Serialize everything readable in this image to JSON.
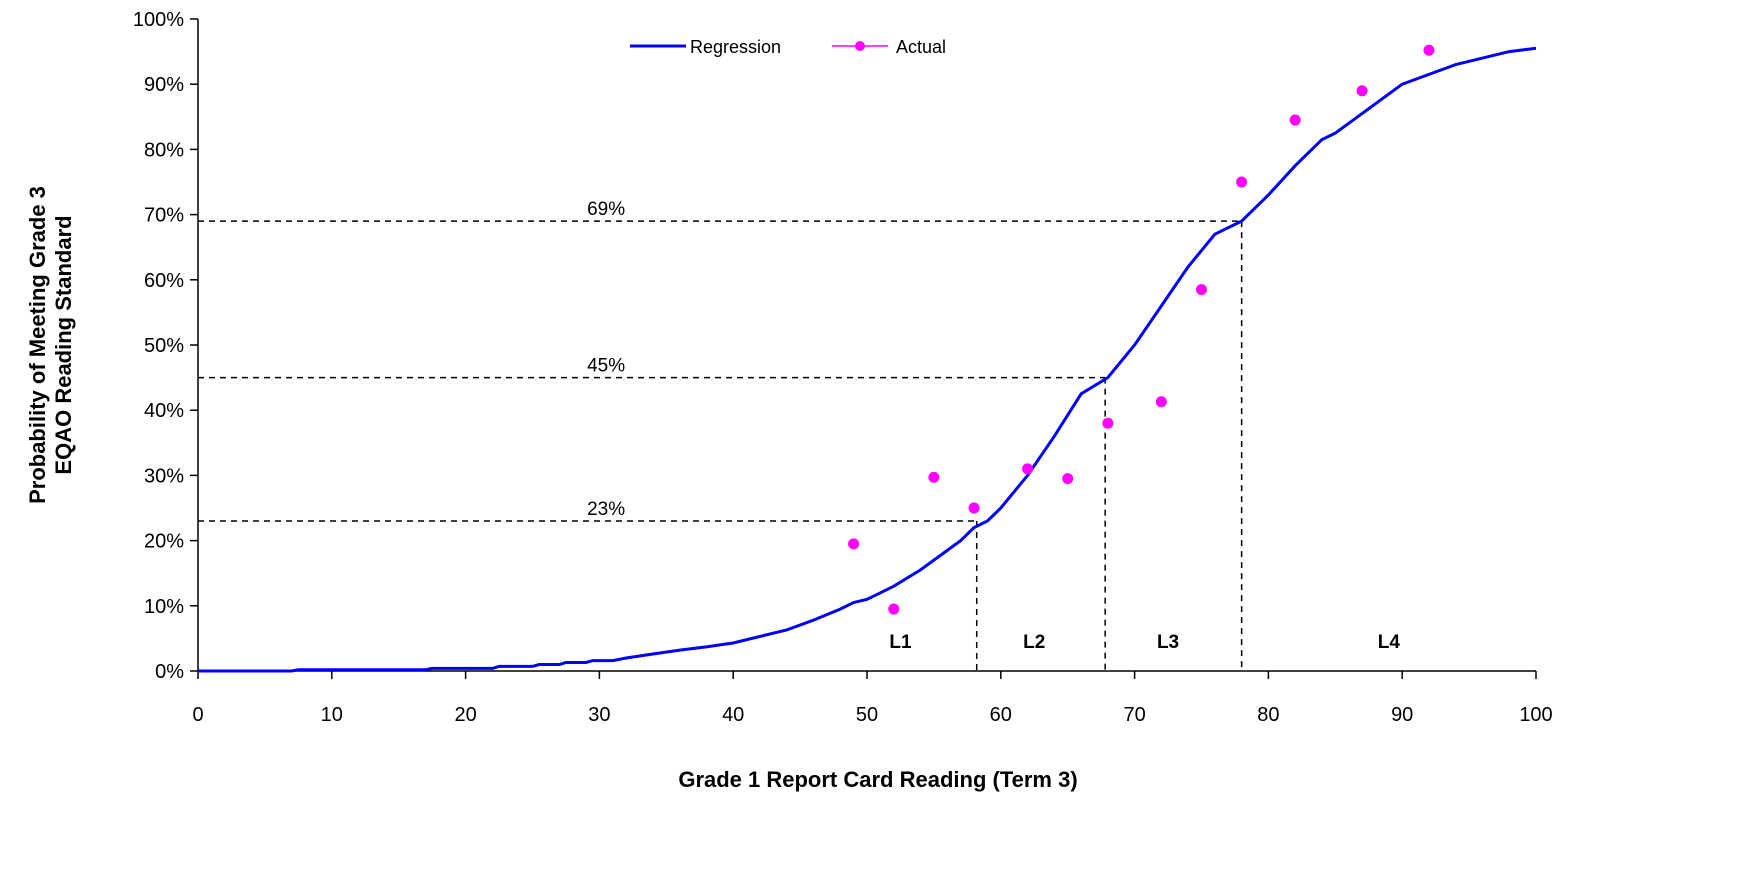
{
  "chart_data": {
    "type": "line",
    "title": "",
    "xlabel": "Grade 1 Report Card Reading (Term 3)",
    "ylabel_lines": [
      "Probability of Meeting Grade 3",
      "EQAO Reading Standard"
    ],
    "xlim": [
      0,
      100
    ],
    "ylim": [
      0,
      100
    ],
    "x_ticks": [
      0,
      10,
      20,
      30,
      40,
      50,
      60,
      70,
      80,
      90,
      100
    ],
    "y_ticks": [
      0,
      10,
      20,
      30,
      40,
      50,
      60,
      70,
      80,
      90,
      100
    ],
    "y_tick_labels": [
      "0%",
      "10%",
      "20%",
      "30%",
      "40%",
      "50%",
      "60%",
      "70%",
      "80%",
      "90%",
      "100%"
    ],
    "grid": false,
    "legend_position": "top-center",
    "series": [
      {
        "name": "Regression",
        "style": "line",
        "color": "#0000ff",
        "x": [
          0,
          7,
          7.5,
          17,
          17.5,
          22,
          22.5,
          25,
          25.5,
          27,
          27.5,
          29,
          29.5,
          31,
          32,
          34,
          36,
          38,
          39,
          40,
          42,
          44,
          46,
          48,
          49,
          50,
          51,
          52,
          54,
          56,
          57,
          58,
          59,
          60,
          62,
          64,
          66,
          68,
          70,
          72,
          74,
          76,
          78,
          79,
          80,
          82,
          84,
          85,
          86,
          88,
          90,
          92,
          94,
          96,
          98,
          100
        ],
        "y": [
          0,
          0,
          0.2,
          0.2,
          0.4,
          0.4,
          0.7,
          0.7,
          1.0,
          1.0,
          1.3,
          1.3,
          1.6,
          1.6,
          2.0,
          2.6,
          3.2,
          3.7,
          4.0,
          4.3,
          5.3,
          6.3,
          7.8,
          9.5,
          10.5,
          11.0,
          12.0,
          13.0,
          15.5,
          18.5,
          20.0,
          22.0,
          23.0,
          25.0,
          30.0,
          36.0,
          42.5,
          45.0,
          50.0,
          56.0,
          62.0,
          67.0,
          69.0,
          71.0,
          73.0,
          77.5,
          81.5,
          82.5,
          84.0,
          87.0,
          90.0,
          91.5,
          93.0,
          94.0,
          95.0,
          95.5
        ]
      },
      {
        "name": "Actual",
        "style": "markers",
        "color": "#ff00ff",
        "x": [
          49,
          52,
          55,
          58,
          62,
          65,
          68,
          72,
          75,
          78,
          82,
          87,
          92
        ],
        "y": [
          19.5,
          9.5,
          29.7,
          25.0,
          31.0,
          29.5,
          38.0,
          41.3,
          58.5,
          75.0,
          84.5,
          89.0,
          95.2
        ]
      }
    ],
    "reference_lines": [
      {
        "label": "23%",
        "y": 23,
        "x": 58.2
      },
      {
        "label": "45%",
        "y": 45,
        "x": 67.8
      },
      {
        "label": "69%",
        "y": 69,
        "x": 78
      }
    ],
    "zones": [
      {
        "label": "L1",
        "x": 52.5
      },
      {
        "label": "L2",
        "x": 62.5
      },
      {
        "label": "L3",
        "x": 72.5
      },
      {
        "label": "L4",
        "x": 89.0
      }
    ]
  }
}
